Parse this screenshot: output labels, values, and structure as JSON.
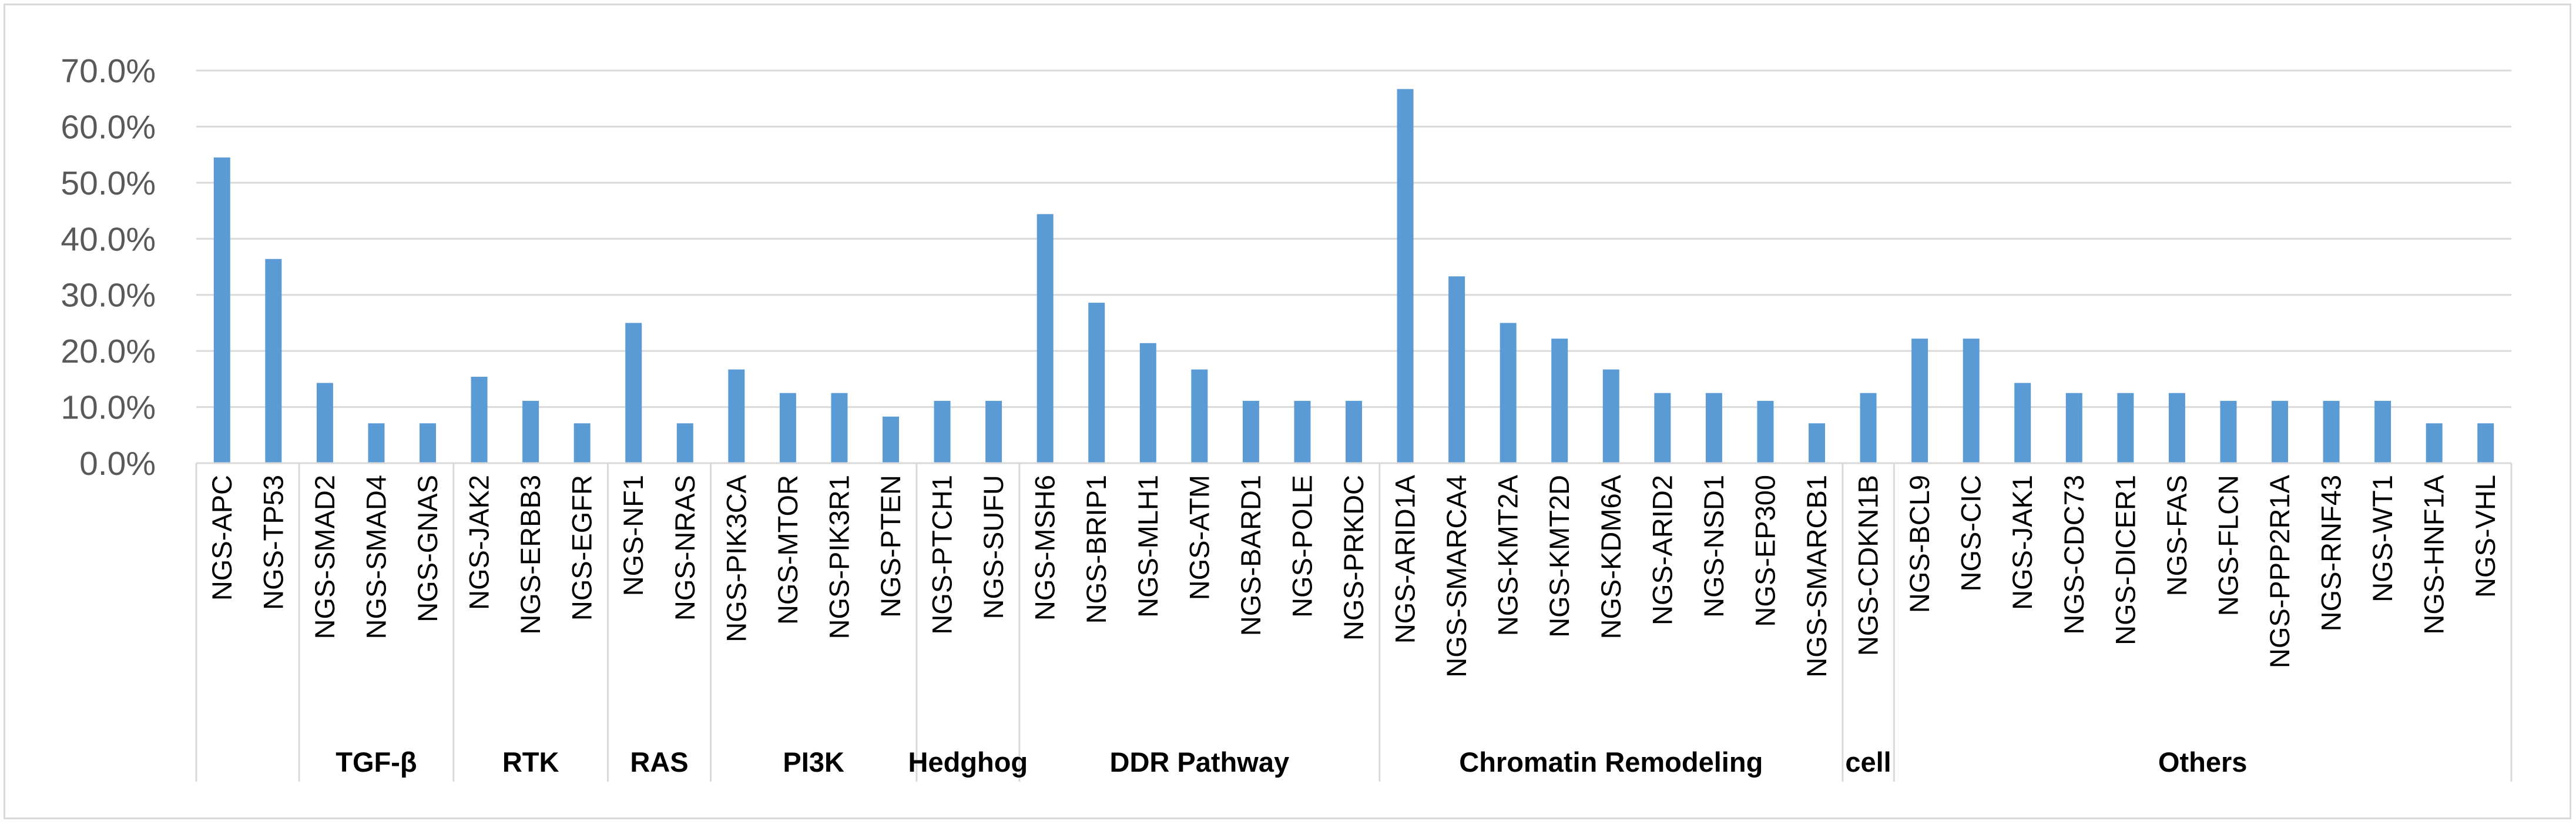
{
  "chart_data": {
    "type": "bar",
    "title": "",
    "xlabel": "",
    "ylabel": "",
    "ylim": [
      0,
      70
    ],
    "yticks": [
      0,
      10,
      20,
      30,
      40,
      50,
      60,
      70
    ],
    "ytick_labels": [
      "0.0%",
      "10.0%",
      "20.0%",
      "30.0%",
      "40.0%",
      "50.0%",
      "60.0%",
      "70.0%"
    ],
    "grid": true,
    "legend": "none",
    "bar_color": "#5b9bd5",
    "categories": [
      "NGS-APC",
      "NGS-TP53",
      "NGS-SMAD2",
      "NGS-SMAD4",
      "NGS-GNAS",
      "NGS-JAK2",
      "NGS-ERBB3",
      "NGS-EGFR",
      "NGS-NF1",
      "NGS-NRAS",
      "NGS-PIK3CA",
      "NGS-MTOR",
      "NGS-PIK3R1",
      "NGS-PTEN",
      "NGS-PTCH1",
      "NGS-SUFU",
      "NGS-MSH6",
      "NGS-BRIP1",
      "NGS-MLH1",
      "NGS-ATM",
      "NGS-BARD1",
      "NGS-POLE",
      "NGS-PRKDC",
      "NGS-ARID1A",
      "NGS-SMARCA4",
      "NGS-KMT2A",
      "NGS-KMT2D",
      "NGS-KDM6A",
      "NGS-ARID2",
      "NGS-NSD1",
      "NGS-EP300",
      "NGS-SMARCB1",
      "NGS-CDKN1B",
      "NGS-BCL9",
      "NGS-CIC",
      "NGS-JAK1",
      "NGS-CDC73",
      "NGS-DICER1",
      "NGS-FAS",
      "NGS-FLCN",
      "NGS-PPP2R1A",
      "NGS-RNF43",
      "NGS-WT1",
      "NGS-HNF1A",
      "NGS-VHL"
    ],
    "values": [
      54.5,
      36.4,
      14.3,
      7.1,
      7.1,
      15.4,
      11.1,
      7.1,
      25.0,
      7.1,
      16.7,
      12.5,
      12.5,
      8.3,
      11.1,
      11.1,
      44.4,
      28.6,
      21.4,
      16.7,
      11.1,
      11.1,
      11.1,
      66.7,
      33.3,
      25.0,
      22.2,
      16.7,
      12.5,
      12.5,
      11.1,
      7.1,
      12.5,
      22.2,
      22.2,
      14.3,
      12.5,
      12.5,
      12.5,
      11.1,
      11.1,
      11.1,
      11.1,
      7.1,
      7.1
    ],
    "groups": [
      {
        "label": "",
        "start": 0,
        "count": 2
      },
      {
        "label": "TGF-β",
        "start": 2,
        "count": 3
      },
      {
        "label": "RTK",
        "start": 5,
        "count": 3
      },
      {
        "label": "RAS",
        "start": 8,
        "count": 2
      },
      {
        "label": "PI3K",
        "start": 10,
        "count": 4
      },
      {
        "label": "Hedghog",
        "start": 14,
        "count": 2
      },
      {
        "label": "DDR Pathway",
        "start": 16,
        "count": 7
      },
      {
        "label": "Chromatin Remodeling",
        "start": 23,
        "count": 9
      },
      {
        "label": "cell",
        "start": 32,
        "count": 1
      },
      {
        "label": "Others",
        "start": 33,
        "count": 12
      }
    ]
  }
}
